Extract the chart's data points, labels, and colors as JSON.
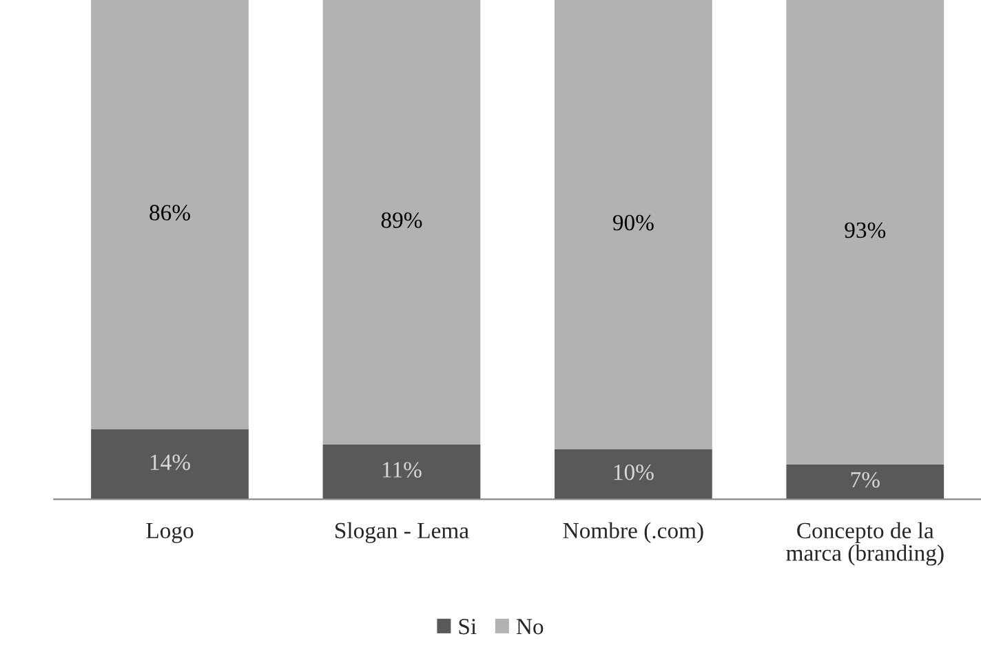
{
  "chart_data": {
    "type": "bar",
    "stacked": true,
    "categories": [
      "Logo",
      "Slogan - Lema",
      "Nombre (.com)",
      "Concepto de la marca (branding)"
    ],
    "series": [
      {
        "name": "Si",
        "color": "#595959",
        "values": [
          14,
          11,
          10,
          7
        ],
        "value_labels": [
          "14%",
          "11%",
          "10%",
          "7%"
        ]
      },
      {
        "name": "No",
        "color": "#b2b2b2",
        "values": [
          86,
          89,
          90,
          93
        ],
        "value_labels": [
          "86%",
          "89%",
          "90%",
          "93%"
        ]
      }
    ],
    "ylim": [
      0,
      100
    ],
    "tick_labels": "x",
    "legend": "bottom"
  }
}
